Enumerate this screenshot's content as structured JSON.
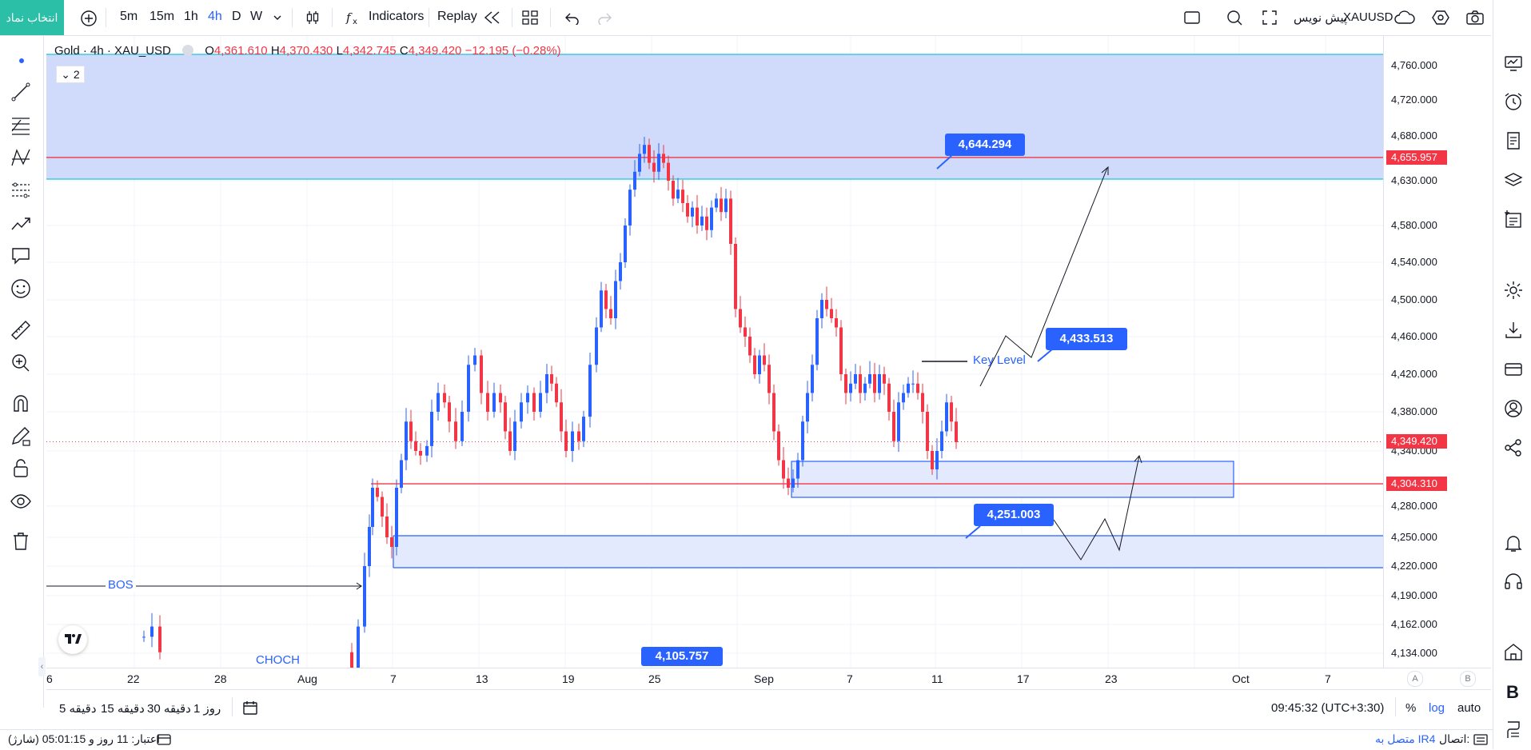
{
  "topbar": {
    "symbol_button": "انتخاب نماد",
    "intervals": [
      "5m",
      "15m",
      "1h",
      "4h",
      "D",
      "W"
    ],
    "active_interval": "4h",
    "indicators_label": "Indicators",
    "replay_label": "Replay",
    "symbol_name": "XAUUSD",
    "symbol_subtitle": "پیش نویس"
  },
  "legend": {
    "title": "Gold · 4h · XAU_USD",
    "open_label": "O",
    "open": "4,361.610",
    "high_label": "H",
    "high": "4,370.430",
    "low_label": "L",
    "low": "4,342.745",
    "close_label": "C",
    "close": "4,349.420",
    "change": "−12.195 (−0.28%)",
    "indicator_count": "2"
  },
  "price_axis": {
    "labels": [
      {
        "text": "4,760.000",
        "value": 4760
      },
      {
        "text": "4,720.000",
        "value": 4720
      },
      {
        "text": "4,680.000",
        "value": 4680
      },
      {
        "text": "4,630.000",
        "value": 4630
      },
      {
        "text": "4,580.000",
        "value": 4580
      },
      {
        "text": "4,540.000",
        "value": 4540
      },
      {
        "text": "4,500.000",
        "value": 4500
      },
      {
        "text": "4,460.000",
        "value": 4460
      },
      {
        "text": "4,420.000",
        "value": 4420
      },
      {
        "text": "4,380.000",
        "value": 4380
      },
      {
        "text": "4,340.000",
        "value": 4340
      },
      {
        "text": "4,280.000",
        "value": 4280
      },
      {
        "text": "4,250.000",
        "value": 4250
      },
      {
        "text": "4,220.000",
        "value": 4220
      },
      {
        "text": "4,190.000",
        "value": 4190
      },
      {
        "text": "4,162.000",
        "value": 4162
      },
      {
        "text": "4,134.000",
        "value": 4134
      }
    ],
    "badges": [
      {
        "text": "4,655.957",
        "value": 4655.957,
        "color": "#f23645"
      },
      {
        "text": "4,349.420",
        "value": 4349.42,
        "color": "#f23645"
      },
      {
        "text": "4,304.310",
        "value": 4304.31,
        "color": "#f23645"
      }
    ]
  },
  "time_axis": {
    "labels": [
      "6",
      "22",
      "28",
      "Aug",
      "7",
      "13",
      "19",
      "25",
      "Sep",
      "7",
      "11",
      "17",
      "23",
      "Oct",
      "7"
    ],
    "right_markers": [
      "A",
      "B"
    ]
  },
  "annotations": {
    "callouts": [
      "4,644.294",
      "4,433.513",
      "4,251.003",
      "4,105.757"
    ],
    "key_level": "Key Level",
    "bos": "BOS",
    "choch": "CHOCH"
  },
  "bottombar": {
    "ranges": [
      "5 دقیقه",
      "15 دقیقه",
      "30 دقیقه",
      "1 روز"
    ],
    "clock": "09:45:32 (UTC+3:30)",
    "percent": "%",
    "log": "log",
    "auto": "auto"
  },
  "statusbar": {
    "credit": "اعتبار: 11 روز و 05:01:15 (شارژ)",
    "connection_label": "اتصال:",
    "connection_value": "متصل به IR4"
  },
  "colors": {
    "up": "#2962ff",
    "down": "#f23645",
    "zone_fill": "#cdd9fb",
    "accent": "#2962ff",
    "symbol_button": "#2bbfa7"
  }
}
